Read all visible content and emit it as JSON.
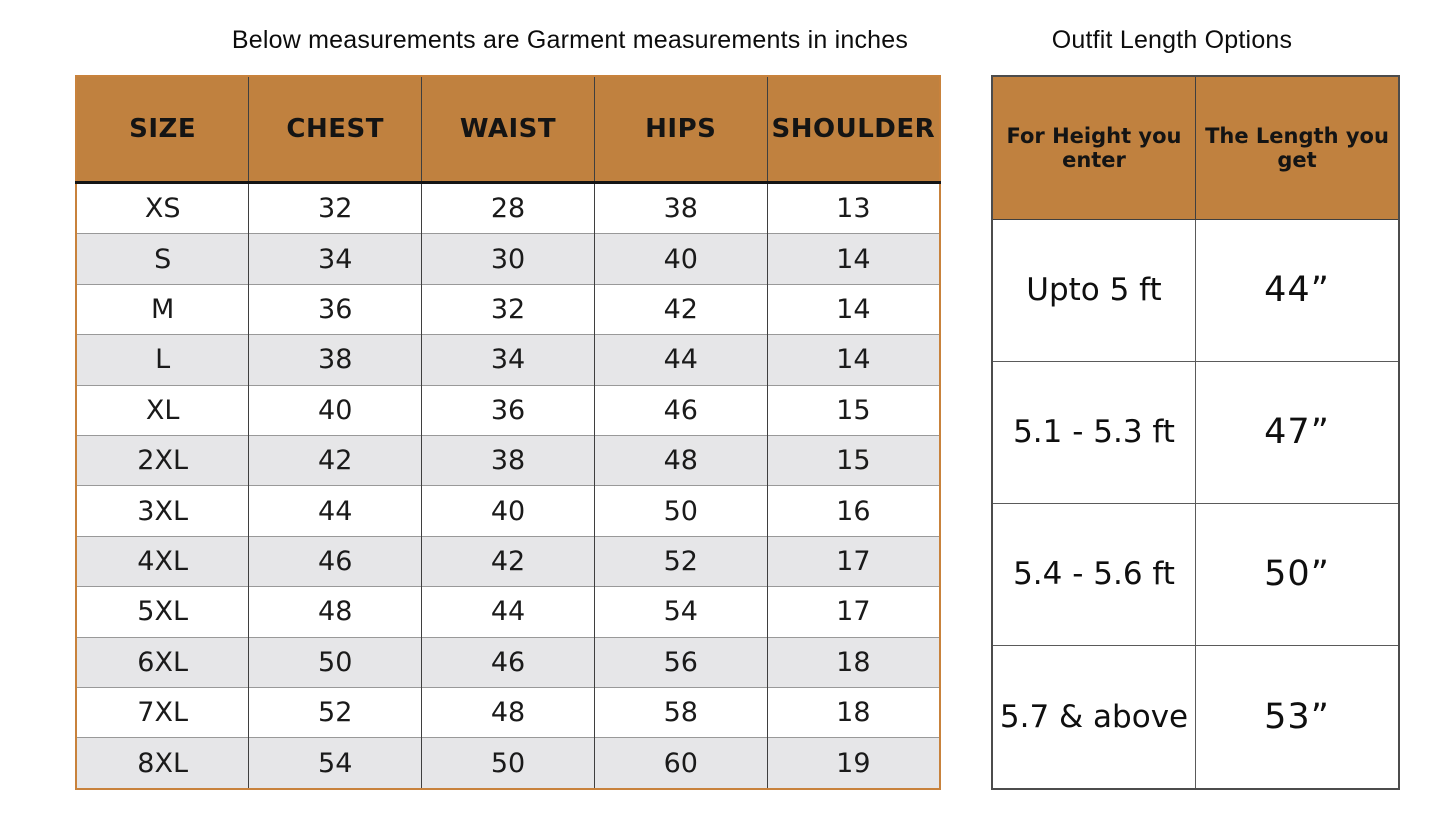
{
  "colors": {
    "header_bg": "#c0813f",
    "stripe_row_bg": "#e6e6e8",
    "plain_row_bg": "#ffffff",
    "left_table_border": "#c8823c",
    "right_table_border": "#4c4c4c",
    "header_divider": "#141414",
    "text": "#141414"
  },
  "chart_data": [
    {
      "id": "garment-measurements",
      "type": "table",
      "title": "Below measurements are Garment measurements in inches",
      "columns": [
        "SIZE",
        "CHEST",
        "WAIST",
        "HIPS",
        "SHOULDER"
      ],
      "rows": [
        [
          "XS",
          32,
          28,
          38,
          13
        ],
        [
          "S",
          34,
          30,
          40,
          14
        ],
        [
          "M",
          36,
          32,
          42,
          14
        ],
        [
          "L",
          38,
          34,
          44,
          14
        ],
        [
          "XL",
          40,
          36,
          46,
          15
        ],
        [
          "2XL",
          42,
          38,
          48,
          15
        ],
        [
          "3XL",
          44,
          40,
          50,
          16
        ],
        [
          "4XL",
          46,
          42,
          52,
          17
        ],
        [
          "5XL",
          48,
          44,
          54,
          17
        ],
        [
          "6XL",
          50,
          46,
          56,
          18
        ],
        [
          "7XL",
          52,
          48,
          58,
          18
        ],
        [
          "8XL",
          54,
          50,
          60,
          19
        ]
      ],
      "units": "inches"
    },
    {
      "id": "outfit-length-options",
      "type": "table",
      "title": "Outfit Length Options",
      "columns": [
        "For Height you enter",
        "The Length you get"
      ],
      "rows": [
        [
          "Upto 5 ft",
          "44”"
        ],
        [
          "5.1 - 5.3 ft",
          "47”"
        ],
        [
          "5.4 - 5.6 ft",
          "50”"
        ],
        [
          "5.7 & above",
          "53”"
        ]
      ]
    }
  ]
}
